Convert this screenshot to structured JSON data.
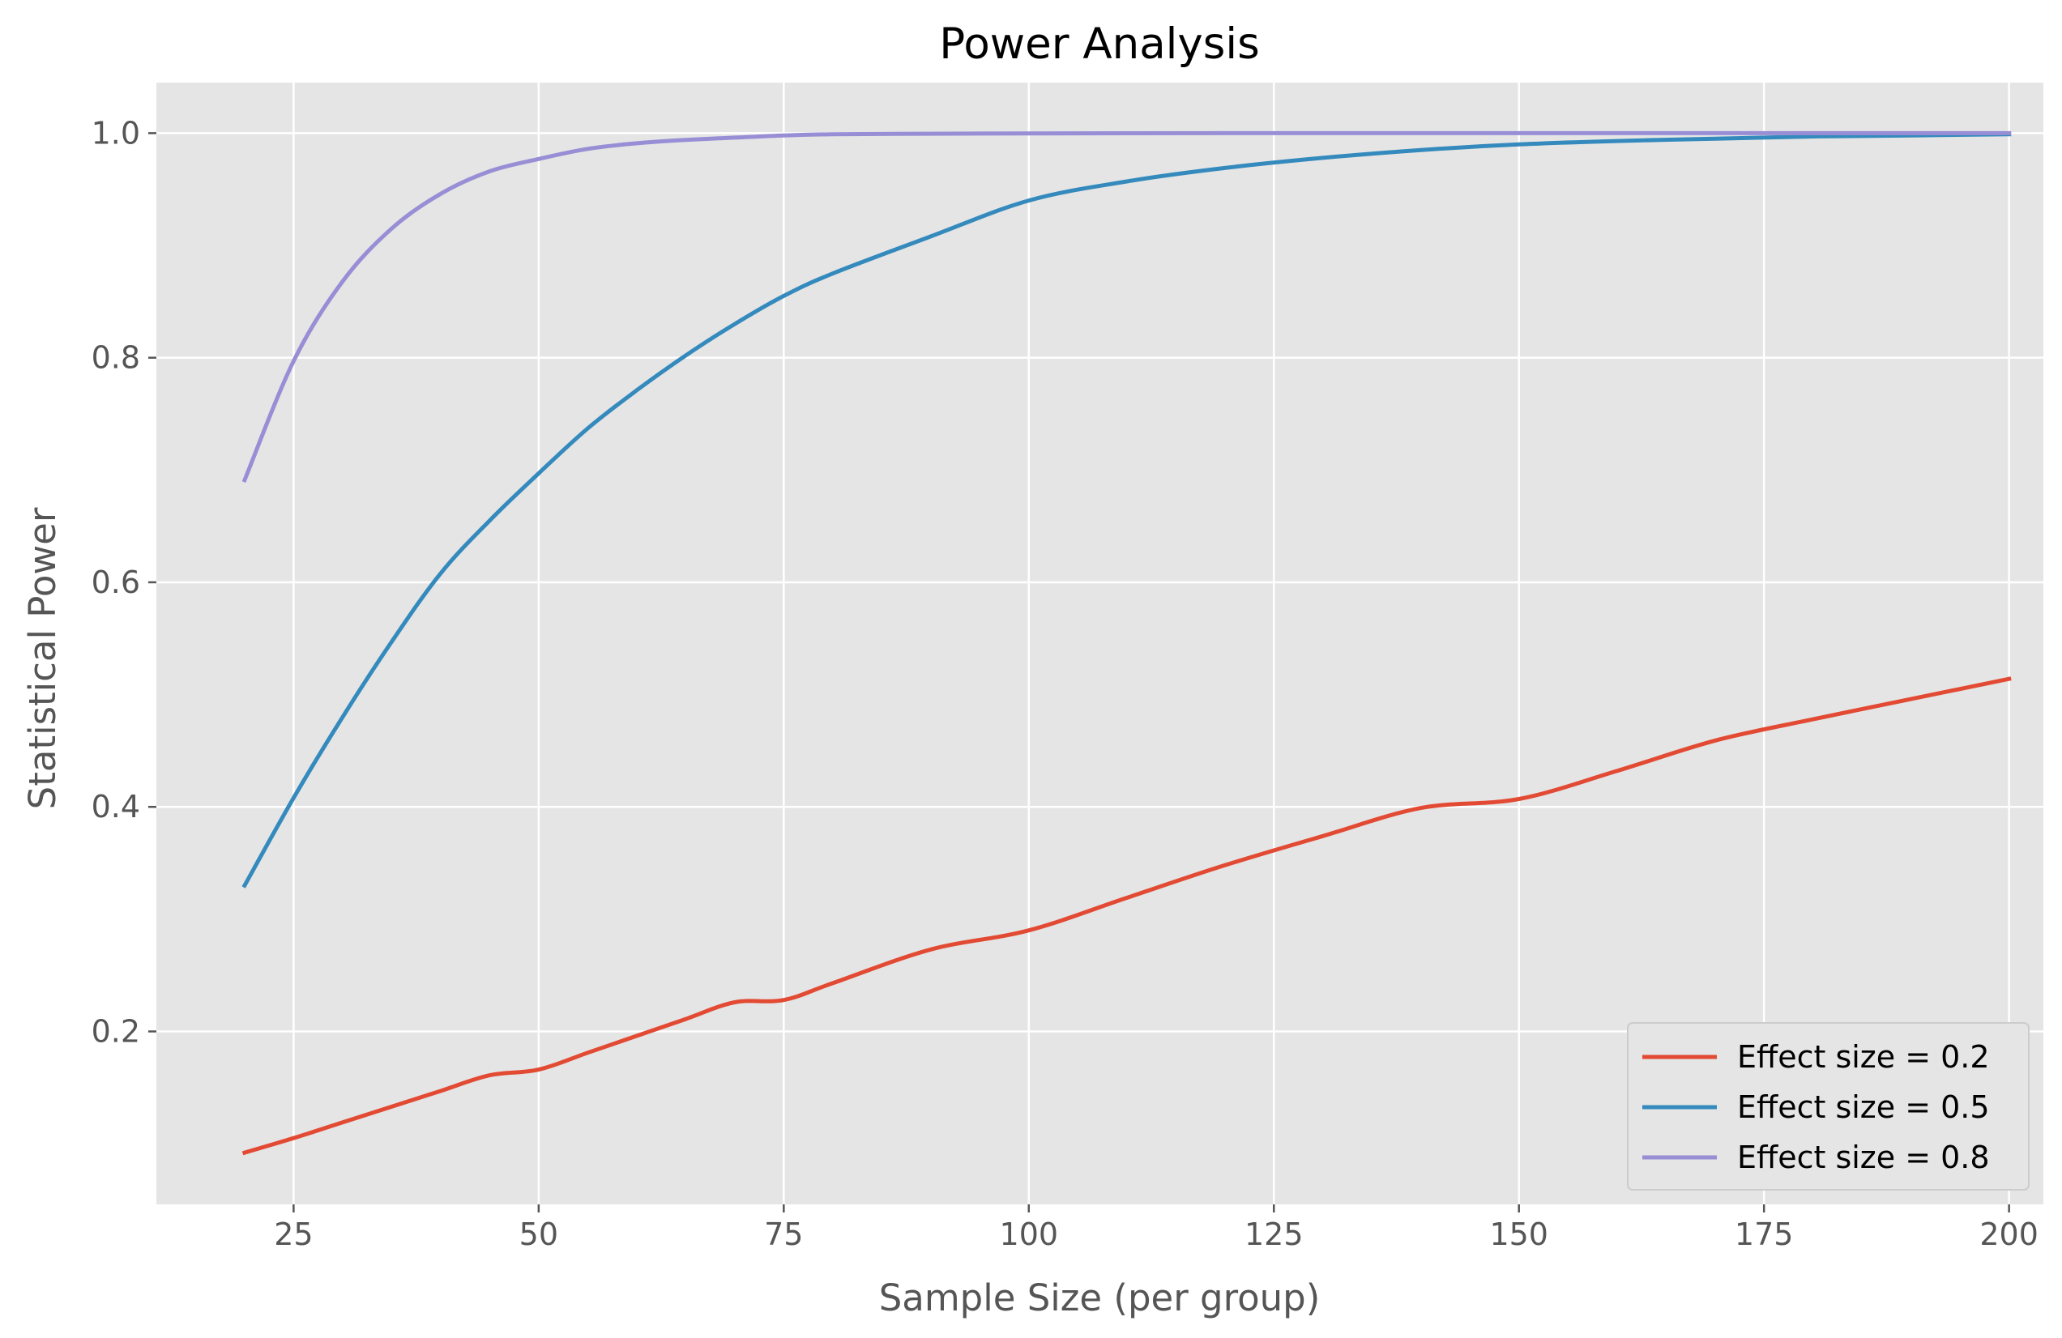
{
  "chart_data": {
    "type": "line",
    "title": "Power Analysis",
    "xlabel": "Sample Size (per group)",
    "ylabel": "Statistical Power",
    "xlim": [
      11,
      203.5
    ],
    "ylim": [
      0.046,
      1.045
    ],
    "xticks": [
      25,
      50,
      75,
      100,
      125,
      150,
      175,
      200
    ],
    "xtick_labels": [
      "25",
      "50",
      "75",
      "100",
      "125",
      "150",
      "175",
      "200"
    ],
    "yticks": [
      0.2,
      0.4,
      0.6,
      0.8,
      1.0
    ],
    "ytick_labels": [
      "0.2",
      "0.4",
      "0.6",
      "0.8",
      "1.0"
    ],
    "grid": true,
    "legend_position": "lower-right",
    "background": "#e5e5e5",
    "x": [
      20,
      25,
      30,
      35,
      40,
      45,
      50,
      55,
      60,
      65,
      70,
      75,
      80,
      90,
      100,
      110,
      120,
      130,
      140,
      150,
      160,
      170,
      180,
      190,
      200
    ],
    "series": [
      {
        "name": "Effect size = 0.2",
        "color": "#E24A33",
        "values": [
          0.092,
          0.105,
          0.119,
          0.133,
          0.147,
          0.161,
          0.166,
          0.181,
          0.196,
          0.211,
          0.226,
          0.228,
          0.243,
          0.273,
          0.29,
          0.319,
          0.348,
          0.374,
          0.399,
          0.407,
          0.432,
          0.459,
          0.478,
          0.496,
          0.514
        ]
      },
      {
        "name": "Effect size = 0.5",
        "color": "#348ABD",
        "values": [
          0.33,
          0.408,
          0.48,
          0.547,
          0.608,
          0.655,
          0.697,
          0.737,
          0.771,
          0.802,
          0.83,
          0.855,
          0.875,
          0.908,
          0.94,
          0.957,
          0.969,
          0.978,
          0.985,
          0.99,
          0.993,
          0.995,
          0.997,
          0.998,
          0.999
        ]
      },
      {
        "name": "Effect size = 0.8",
        "color": "#988ED5",
        "values": [
          0.691,
          0.797,
          0.868,
          0.915,
          0.946,
          0.966,
          0.977,
          0.986,
          0.991,
          0.994,
          0.996,
          0.998,
          0.999,
          0.9995,
          0.9998,
          0.9999,
          1.0,
          1.0,
          1.0,
          1.0,
          1.0,
          1.0,
          1.0,
          1.0,
          1.0
        ]
      }
    ]
  }
}
